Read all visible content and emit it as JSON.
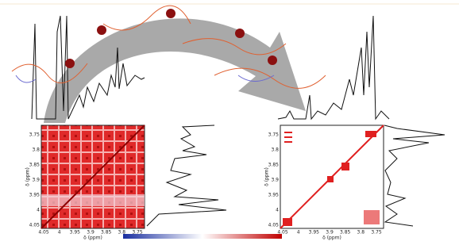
{
  "left_panel": {
    "x_ticks": [
      "4.05",
      "4",
      "3.95",
      "3.9",
      "3.85",
      "3.8",
      "3.75"
    ],
    "y_ticks": [
      "3.75",
      "3.8",
      "3.85",
      "3.9",
      "3.95",
      "4",
      "4.05"
    ],
    "x_label": "δ (ppm)",
    "y_label": "δ (ppm)"
  },
  "right_panel": {
    "x_ticks": [
      "4.05",
      "4",
      "3.95",
      "3.9",
      "3.85",
      "3.8",
      "3.75"
    ],
    "y_ticks": [
      "3.75",
      "3.8",
      "3.85",
      "3.9",
      "3.95",
      "4",
      "4.05"
    ],
    "x_label": "δ (ppm)",
    "y_label": "δ (ppm)"
  }
}
